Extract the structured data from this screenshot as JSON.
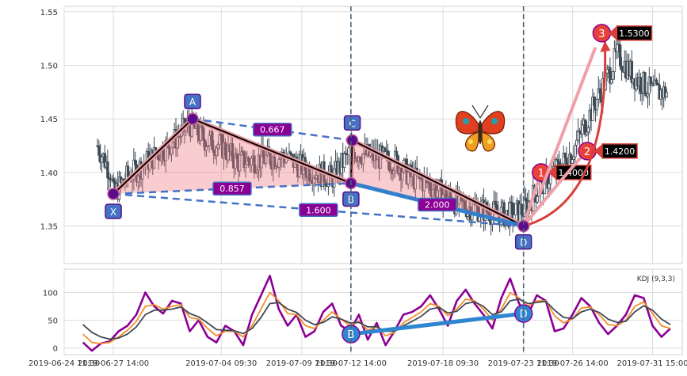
{
  "chart_data": [
    {
      "type": "candlestick",
      "title": "",
      "ylim": [
        1.315,
        1.555
      ],
      "yticks": [
        1.35,
        1.4,
        1.45,
        1.5,
        1.55
      ],
      "ytick_labels": [
        "1.35",
        "1.40",
        "1.45",
        "1.50",
        "1.55"
      ],
      "x_range": [
        "2019-06-24 11:30",
        "2019-08-02 12:00"
      ],
      "xtick_labels": [
        "2019-06-24 11:30",
        "2019-06-27 14:00",
        "2019-07-04 09:30",
        "2019-07-09 11:30",
        "2019-07-12 14:00",
        "2019-07-18 09:30",
        "2019-07-23 11:30",
        "2019-07-26 14:00",
        "2019-07-31 15:00"
      ],
      "grid": true,
      "vertical_markers": [
        "2019-07-12 14:00",
        "2019-07-23 11:30"
      ],
      "candle_anchors": [
        [
          "2019-06-26 14:00",
          1.425
        ],
        [
          "2019-06-27 10:00",
          1.4
        ],
        [
          "2019-06-27 14:00",
          1.38
        ],
        [
          "2019-06-28 10:00",
          1.395
        ],
        [
          "2019-07-01 10:00",
          1.43
        ],
        [
          "2019-07-02 10:00",
          1.445
        ],
        [
          "2019-07-03 10:00",
          1.43
        ],
        [
          "2019-07-04 09:30",
          1.425
        ],
        [
          "2019-07-05 10:00",
          1.41
        ],
        [
          "2019-07-08 10:00",
          1.415
        ],
        [
          "2019-07-09 11:30",
          1.405
        ],
        [
          "2019-07-10 10:00",
          1.4
        ],
        [
          "2019-07-11 10:00",
          1.395
        ],
        [
          "2019-07-12 14:00",
          1.42
        ],
        [
          "2019-07-15 10:00",
          1.41
        ],
        [
          "2019-07-16 10:00",
          1.395
        ],
        [
          "2019-07-17 10:00",
          1.39
        ],
        [
          "2019-07-18 09:30",
          1.38
        ],
        [
          "2019-07-19 10:00",
          1.37
        ],
        [
          "2019-07-22 10:00",
          1.36
        ],
        [
          "2019-07-23 11:30",
          1.365
        ],
        [
          "2019-07-24 10:00",
          1.385
        ],
        [
          "2019-07-25 10:00",
          1.4
        ],
        [
          "2019-07-26 14:00",
          1.42
        ],
        [
          "2019-07-29 10:00",
          1.51
        ],
        [
          "2019-07-30 10:00",
          1.49
        ],
        [
          "2019-07-31 15:00",
          1.475
        ],
        [
          "2019-08-01 14:00",
          1.475
        ]
      ],
      "harmonic_pattern": {
        "points": [
          {
            "label": "X",
            "x": "2019-06-27 14:00",
            "y": 1.38
          },
          {
            "label": "A",
            "x": "2019-07-02 14:00",
            "y": 1.45
          },
          {
            "label": "B",
            "x": "2019-07-12 14:00",
            "y": 1.39
          },
          {
            "label": "C",
            "x": "2019-07-12 16:00",
            "y": 1.43
          },
          {
            "label": "D",
            "x": "2019-07-23 11:30",
            "y": 1.35
          }
        ],
        "ratios": [
          {
            "from": "A",
            "to": "C",
            "value": "0.667"
          },
          {
            "from": "X",
            "to": "B",
            "value": "0.857"
          },
          {
            "from": "X",
            "to": "D",
            "value": "1.600"
          },
          {
            "from": "B",
            "to": "D",
            "value": "2.000"
          }
        ],
        "targets": [
          {
            "label": "1",
            "x": "2019-07-24 14:00",
            "y": 1.4,
            "value": "1.4000"
          },
          {
            "label": "2",
            "x": "2019-07-27 12:00",
            "y": 1.42,
            "value": "1.4200"
          },
          {
            "label": "3",
            "x": "2019-07-28 10:00",
            "y": 1.53,
            "value": "1.5300"
          }
        ]
      }
    },
    {
      "type": "line",
      "title": "KDJ (9,3,3)",
      "ylim": [
        -12,
        142
      ],
      "yticks": [
        0,
        50,
        100
      ],
      "ytick_labels": [
        "0",
        "50",
        "100"
      ],
      "series": [
        {
          "color": "#8b0094",
          "values": [
            10,
            -5,
            8,
            12,
            30,
            40,
            60,
            100,
            75,
            62,
            85,
            80,
            30,
            50,
            20,
            10,
            40,
            30,
            5,
            60,
            95,
            130,
            70,
            40,
            60,
            20,
            30,
            65,
            80,
            40,
            30,
            60,
            15,
            45,
            5,
            30,
            60,
            65,
            75,
            95,
            70,
            40,
            85,
            105,
            80,
            60,
            35,
            90,
            125,
            80,
            60,
            95,
            85,
            30,
            35,
            60,
            90,
            75,
            45,
            25,
            40,
            60,
            95,
            90,
            40,
            20,
            35
          ]
        },
        {
          "color": "#f28e2b",
          "values": [
            25,
            10,
            8,
            10,
            20,
            32,
            48,
            75,
            78,
            70,
            75,
            78,
            55,
            52,
            35,
            22,
            30,
            30,
            20,
            40,
            70,
            100,
            85,
            62,
            60,
            40,
            35,
            50,
            65,
            52,
            40,
            48,
            32,
            38,
            22,
            28,
            45,
            55,
            65,
            80,
            75,
            58,
            70,
            88,
            85,
            70,
            50,
            70,
            100,
            90,
            75,
            85,
            85,
            58,
            45,
            52,
            72,
            74,
            60,
            42,
            40,
            50,
            75,
            83,
            62,
            40,
            35
          ]
        },
        {
          "color": "#3e4a55",
          "values": [
            42,
            28,
            20,
            16,
            18,
            25,
            38,
            60,
            68,
            68,
            70,
            74,
            62,
            56,
            45,
            33,
            32,
            31,
            26,
            35,
            55,
            80,
            82,
            70,
            64,
            50,
            42,
            46,
            56,
            52,
            45,
            46,
            38,
            38,
            30,
            30,
            40,
            48,
            57,
            70,
            73,
            63,
            66,
            80,
            83,
            75,
            60,
            65,
            85,
            88,
            80,
            82,
            84,
            68,
            55,
            53,
            65,
            70,
            64,
            52,
            46,
            48,
            65,
            76,
            68,
            52,
            42
          ]
        }
      ],
      "divergence_points": [
        {
          "label": "B",
          "x": "2019-07-12 14:00",
          "y": 25
        },
        {
          "label": "D",
          "x": "2019-07-23 11:30",
          "y": 62
        }
      ]
    }
  ]
}
